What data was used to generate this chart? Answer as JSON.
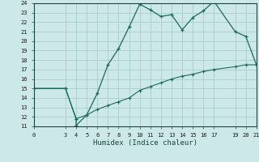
{
  "xlabel": "Humidex (Indice chaleur)",
  "bg_color": "#cce8e8",
  "grid_color": "#aacccc",
  "line_color": "#1a6b5a",
  "upper_x": [
    0,
    3,
    4,
    4,
    5,
    6,
    7,
    8,
    9,
    10,
    11,
    12,
    13,
    14,
    15,
    16,
    17,
    19,
    20,
    21
  ],
  "upper_y": [
    15,
    15,
    11.8,
    11.1,
    12.2,
    14.5,
    17.5,
    19.2,
    21.5,
    23.9,
    23.3,
    22.6,
    22.8,
    21.2,
    22.5,
    23.2,
    24.2,
    21.0,
    20.5,
    17.5
  ],
  "lower_x": [
    0,
    3,
    4,
    5,
    6,
    7,
    8,
    9,
    10,
    11,
    12,
    13,
    14,
    15,
    16,
    17,
    19,
    20,
    21
  ],
  "lower_y": [
    15,
    15,
    11.8,
    12.2,
    12.8,
    13.2,
    13.6,
    14.0,
    14.8,
    15.2,
    15.6,
    16.0,
    16.3,
    16.5,
    16.8,
    17.0,
    17.3,
    17.5,
    17.5
  ],
  "xlim": [
    0,
    21
  ],
  "ylim": [
    11,
    24
  ],
  "xticks": [
    0,
    3,
    4,
    5,
    6,
    7,
    8,
    9,
    10,
    11,
    12,
    13,
    14,
    15,
    16,
    17,
    19,
    20,
    21
  ],
  "yticks": [
    11,
    12,
    13,
    14,
    15,
    16,
    17,
    18,
    19,
    20,
    21,
    22,
    23,
    24
  ]
}
